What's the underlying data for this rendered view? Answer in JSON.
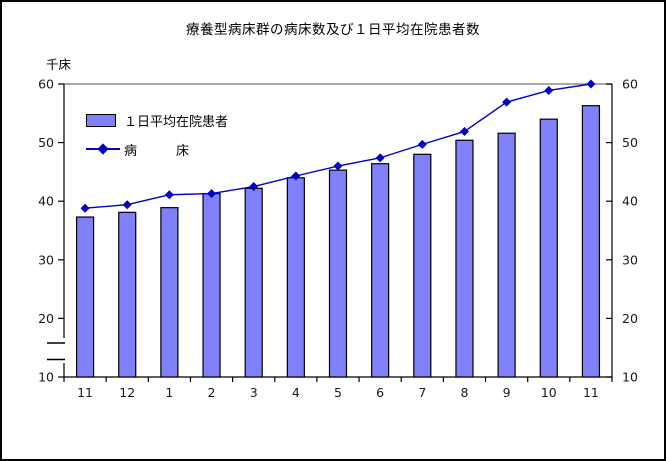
{
  "window": {
    "background": "#FFFFFF",
    "border_color": "#000000"
  },
  "chart_data": {
    "type": "bar",
    "subtype": "bar-line-combo",
    "title": "療養型病床群の病床数及び１日平均在院患者数",
    "unit_label": "千床",
    "categories": [
      "11",
      "12",
      "1",
      "2",
      "3",
      "4",
      "5",
      "6",
      "7",
      "8",
      "9",
      "10",
      "11"
    ],
    "series": [
      {
        "name": "１日平均在院患者",
        "legend_label": "１日平均在院患者",
        "type": "bar",
        "color": "#8080FA",
        "border_color": "#000000",
        "values": [
          37.3,
          38.1,
          38.9,
          41.3,
          42.2,
          44.0,
          45.3,
          46.4,
          48.0,
          50.4,
          51.6,
          54.0,
          56.3
        ]
      },
      {
        "name": "病床",
        "legend_label": "病　　　床",
        "type": "line",
        "color": "#0000CC",
        "marker": "diamond",
        "marker_color": "#0000BE",
        "values": [
          38.8,
          39.4,
          41.1,
          41.3,
          42.5,
          44.3,
          46.0,
          47.4,
          49.7,
          51.9,
          56.9,
          58.9,
          60.0
        ]
      }
    ],
    "y_axis": {
      "min": 10,
      "max": 60,
      "ticks": [
        60,
        50,
        40,
        30,
        20,
        10
      ],
      "axis_break_between": [
        10,
        20
      ],
      "labels_left": true,
      "labels_right": true
    },
    "grid": "off",
    "legend_position": "inside-top-left"
  }
}
